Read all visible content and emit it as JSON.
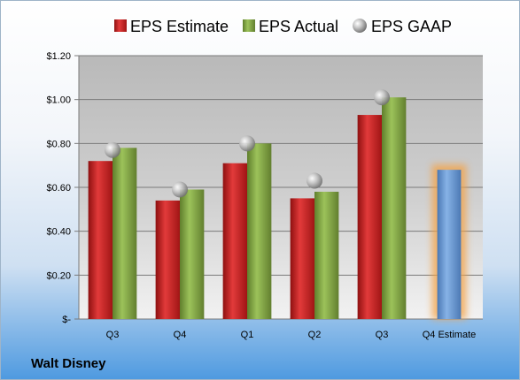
{
  "chart_data": {
    "type": "bar",
    "categories": [
      "Q3",
      "Q4",
      "Q1",
      "Q2",
      "Q3",
      "Q4 Estimate"
    ],
    "series": [
      {
        "name": "EPS Estimate",
        "values": [
          0.72,
          0.54,
          0.71,
          0.55,
          0.93,
          null
        ]
      },
      {
        "name": "EPS Actual",
        "values": [
          0.78,
          0.59,
          0.8,
          0.58,
          1.01,
          null
        ]
      },
      {
        "name": "EPS GAAP",
        "values": [
          0.77,
          0.59,
          0.8,
          0.63,
          1.01,
          null
        ],
        "marker": "sphere"
      }
    ],
    "forecast": {
      "category": "Q4 Estimate",
      "value": 0.68,
      "color": "#6f9fd8",
      "glow": "#f5a142"
    },
    "ylim": [
      0,
      1.2
    ],
    "yticks": [
      0,
      0.2,
      0.4,
      0.6,
      0.8,
      1.0,
      1.2
    ],
    "ytick_labels": [
      "$-",
      "$0.20",
      "$0.40",
      "$0.60",
      "$0.80",
      "$1.00",
      "$1.20"
    ],
    "legend_position": "top",
    "grid": true,
    "colors": {
      "estimate": "#d42a2a",
      "actual": "#8caf4e",
      "gaap": "#b5b5b5"
    }
  },
  "company": "Walt Disney"
}
